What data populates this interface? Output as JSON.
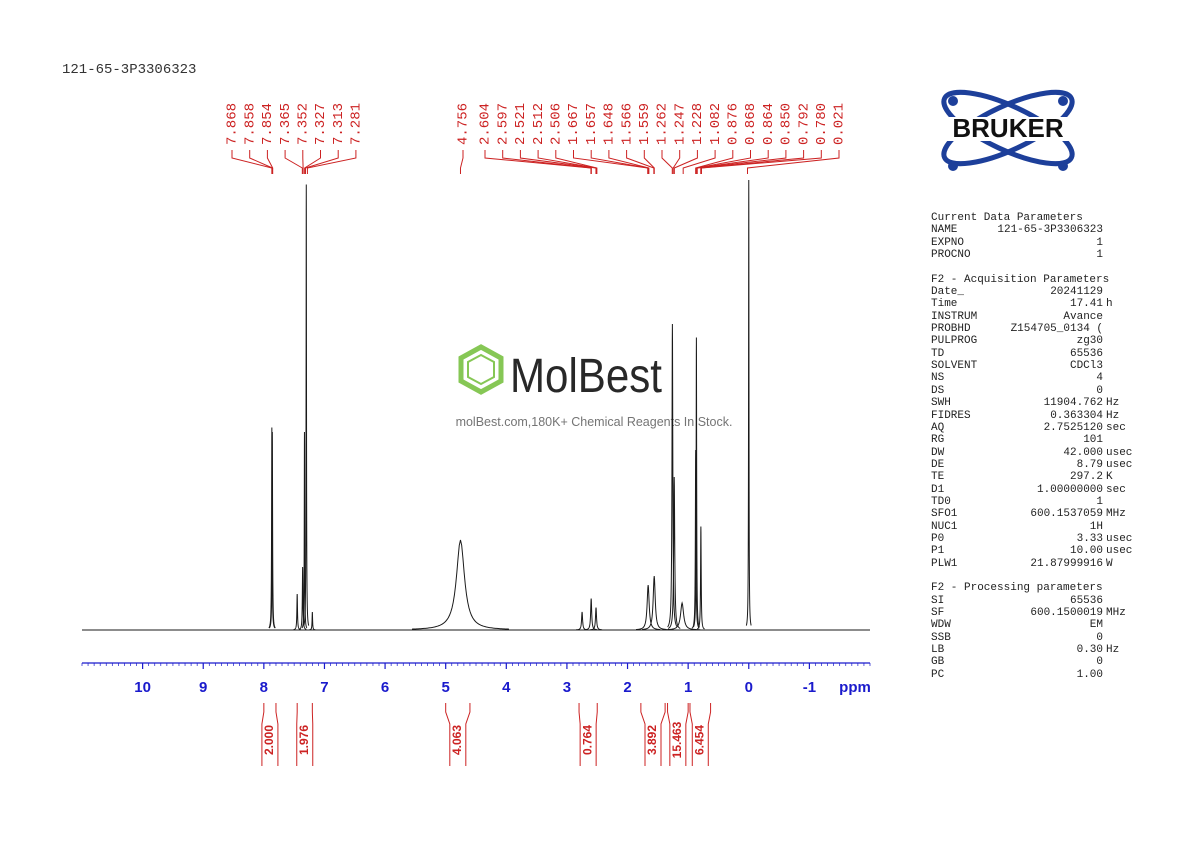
{
  "header": {
    "title": "121-65-3P3306323"
  },
  "watermark": {
    "brand": "MolBest",
    "tagline": "molBest.com,180K+ Chemical Reagents In Stock."
  },
  "logo": {
    "text": "BRUKER"
  },
  "chart_data": {
    "type": "nmr",
    "x_label": "ppm",
    "xlim": [
      11.0,
      -2.0
    ],
    "xticks": [
      10,
      9,
      8,
      7,
      6,
      5,
      4,
      3,
      2,
      1,
      0,
      -1
    ],
    "color": "#1a1a1a",
    "label_color": "#cc2222",
    "axis_color": "#1a1acc",
    "peaks": {
      "x": [
        7.868,
        7.86,
        7.45,
        7.36,
        7.33,
        7.3,
        7.2,
        4.756,
        2.75,
        2.6,
        2.52,
        1.66,
        1.56,
        1.26,
        1.23,
        1.1,
        0.876,
        0.864,
        0.79,
        0.0
      ],
      "values": [
        45,
        44,
        8,
        14,
        44,
        99,
        4,
        20,
        4,
        7,
        5,
        10,
        12,
        68,
        34,
        6,
        40,
        65,
        23,
        100
      ],
      "widths": [
        0.005,
        0.005,
        0.006,
        0.006,
        0.004,
        0.004,
        0.005,
        0.08,
        0.01,
        0.01,
        0.01,
        0.02,
        0.02,
        0.008,
        0.01,
        0.03,
        0.006,
        0.005,
        0.006,
        0.004
      ]
    },
    "peak_label_groups": [
      [
        {
          "value": 7.868,
          "label": "7.868"
        },
        {
          "value": 7.858,
          "label": "7.858"
        },
        {
          "value": 7.854,
          "label": "7.854"
        },
        {
          "value": 7.365,
          "label": "7.365"
        },
        {
          "value": 7.352,
          "label": "7.352"
        },
        {
          "value": 7.327,
          "label": "7.327"
        },
        {
          "value": 7.313,
          "label": "7.313"
        },
        {
          "value": 7.281,
          "label": "7.281"
        }
      ],
      [
        {
          "value": 4.756,
          "label": "4.756"
        }
      ],
      [
        {
          "value": 2.604,
          "label": "2.604"
        },
        {
          "value": 2.597,
          "label": "2.597"
        },
        {
          "value": 2.521,
          "label": "2.521"
        },
        {
          "value": 2.512,
          "label": "2.512"
        },
        {
          "value": 2.506,
          "label": "2.506"
        },
        {
          "value": 1.667,
          "label": "1.667"
        },
        {
          "value": 1.657,
          "label": "1.657"
        },
        {
          "value": 1.648,
          "label": "1.648"
        },
        {
          "value": 1.566,
          "label": "1.566"
        },
        {
          "value": 1.559,
          "label": "1.559"
        },
        {
          "value": 1.262,
          "label": "1.262"
        },
        {
          "value": 1.247,
          "label": "1.247"
        },
        {
          "value": 1.228,
          "label": "1.228"
        },
        {
          "value": 1.082,
          "label": "1.082"
        },
        {
          "value": 0.876,
          "label": "0.876"
        },
        {
          "value": 0.868,
          "label": "0.868"
        },
        {
          "value": 0.864,
          "label": "0.864"
        },
        {
          "value": 0.85,
          "label": "0.850"
        },
        {
          "value": 0.792,
          "label": "0.792"
        },
        {
          "value": 0.78,
          "label": "0.780"
        },
        {
          "value": 0.021,
          "label": "0.021"
        }
      ]
    ],
    "integrals": [
      {
        "from": 8.0,
        "to": 7.8,
        "value": {
          "value": 2.0,
          "label": "2.000"
        }
      },
      {
        "from": 7.45,
        "to": 7.2,
        "value": 1.976
      },
      {
        "from": 5.0,
        "to": 4.6,
        "value": 4.063
      },
      {
        "from": 2.8,
        "to": 2.5,
        "value": 0.764
      },
      {
        "from": 1.78,
        "to": 1.38,
        "value": 3.892
      },
      {
        "from": 1.34,
        "to": 1.0,
        "value": 15.463
      },
      {
        "from": 0.97,
        "to": 0.63,
        "value": 6.454
      }
    ]
  },
  "parameters": [
    {
      "title": "Current Data Parameters",
      "rows": [
        [
          "NAME",
          "121-65-3P3306323"
        ],
        [
          "EXPNO",
          "1"
        ],
        [
          "PROCNO",
          "1"
        ]
      ]
    },
    {
      "title": "F2 - Acquisition Parameters",
      "rows": [
        [
          "Date_",
          "20241129"
        ],
        [
          "Time",
          "17.41",
          "h"
        ],
        [
          "INSTRUM",
          "Avance"
        ],
        [
          "PROBHD",
          "Z154705_0134 ("
        ],
        [
          "PULPROG",
          "zg30"
        ],
        [
          "TD",
          "65536"
        ],
        [
          "SOLVENT",
          "CDCl3"
        ],
        [
          "NS",
          "4"
        ],
        [
          "DS",
          "0"
        ],
        [
          "SWH",
          "11904.762",
          "Hz"
        ],
        [
          "FIDRES",
          "0.363304",
          "Hz"
        ],
        [
          "AQ",
          "2.7525120",
          "sec"
        ],
        [
          "RG",
          "101"
        ],
        [
          "DW",
          "42.000",
          "usec"
        ],
        [
          "DE",
          "8.79",
          "usec"
        ],
        [
          "TE",
          "297.2",
          "K"
        ],
        [
          "D1",
          "1.00000000",
          "sec"
        ],
        [
          "TD0",
          "1"
        ],
        [
          "SFO1",
          "600.1537059",
          "MHz"
        ],
        [
          "NUC1",
          "1H"
        ],
        [
          "P0",
          "3.33",
          "usec"
        ],
        [
          "P1",
          "10.00",
          "usec"
        ],
        [
          "PLW1",
          "21.87999916",
          "W"
        ]
      ]
    },
    {
      "title": "F2 - Processing parameters",
      "rows": [
        [
          "SI",
          "65536"
        ],
        [
          "SF",
          "600.1500019",
          "MHz"
        ],
        [
          "WDW",
          "EM"
        ],
        [
          "SSB",
          "0"
        ],
        [
          "LB",
          "0.30",
          "Hz"
        ],
        [
          "GB",
          "0"
        ],
        [
          "PC",
          "1.00"
        ]
      ]
    }
  ]
}
